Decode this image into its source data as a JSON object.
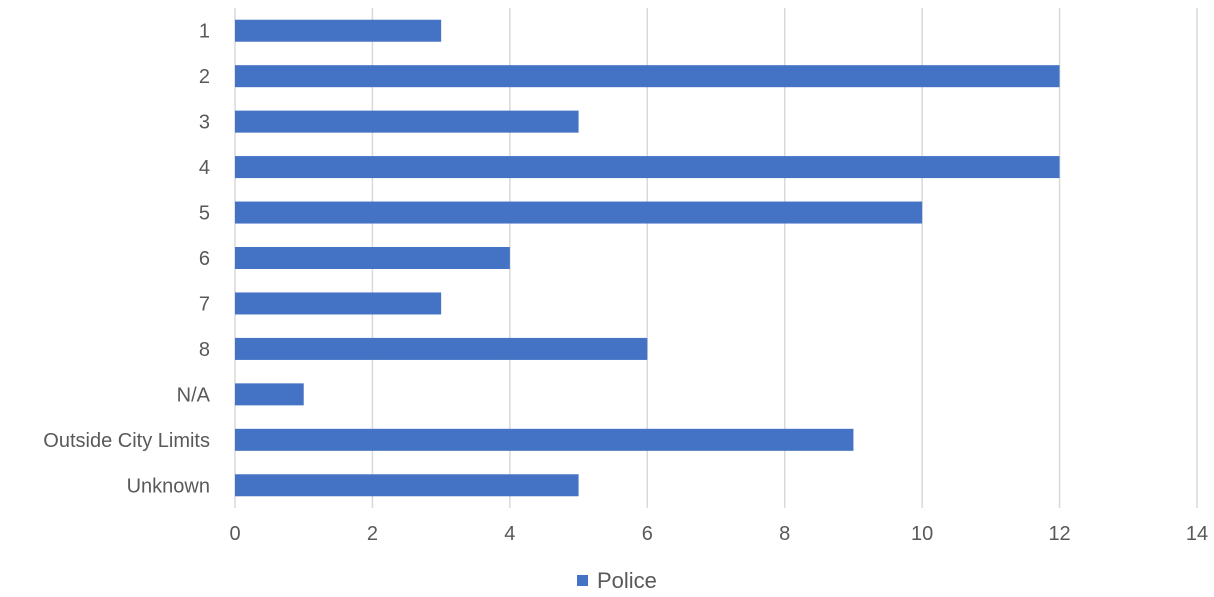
{
  "chart_data": {
    "type": "bar",
    "orientation": "horizontal",
    "categories": [
      "1",
      "2",
      "3",
      "4",
      "5",
      "6",
      "7",
      "8",
      "N/A",
      "Outside City Limits",
      "Unknown"
    ],
    "series": [
      {
        "name": "Police",
        "values": [
          3,
          12,
          5,
          12,
          10,
          4,
          3,
          6,
          1,
          9,
          5
        ],
        "color": "#4472c4"
      }
    ],
    "xlim": [
      0,
      14
    ],
    "x_ticks": [
      "0",
      "2",
      "4",
      "6",
      "8",
      "10",
      "12",
      "14"
    ],
    "grid": "vertical",
    "legend_position": "bottom",
    "gridline_color": "#d9d9d9"
  }
}
